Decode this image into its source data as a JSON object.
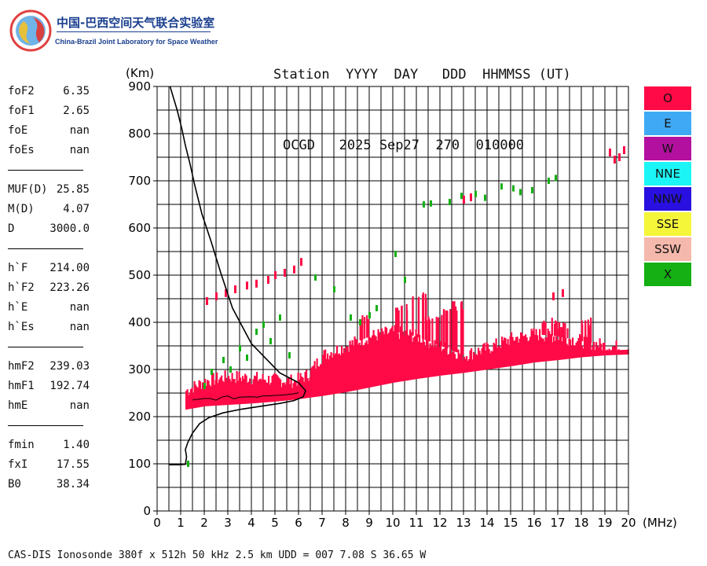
{
  "logo": {
    "cn_text": "中国-巴西空间天气联合实验室",
    "en_text": "China-Brazil Joint Laboratory for Space Weather"
  },
  "header": {
    "line1": "Station  YYYY  DAY   DDD  HHMMSS (UT)",
    "line2": "OCGD   2025 Sep27  270  010000"
  },
  "params": [
    {
      "group": [
        {
          "key": "foF2",
          "value": "6.35"
        },
        {
          "key": "foF1",
          "value": "2.65"
        },
        {
          "key": "foE",
          "value": "nan"
        },
        {
          "key": "foEs",
          "value": "nan"
        }
      ]
    },
    {
      "group": [
        {
          "key": "MUF(D)",
          "value": "25.85"
        },
        {
          "key": "M(D)",
          "value": "4.07"
        },
        {
          "key": "D",
          "value": "3000.0"
        }
      ]
    },
    {
      "group": [
        {
          "key": "h`F",
          "value": "214.00"
        },
        {
          "key": "h`F2",
          "value": "223.26"
        },
        {
          "key": "h`E",
          "value": "nan"
        },
        {
          "key": "h`Es",
          "value": "nan"
        }
      ]
    },
    {
      "group": [
        {
          "key": "hmF2",
          "value": "239.03"
        },
        {
          "key": "hmF1",
          "value": "192.74"
        },
        {
          "key": "hmE",
          "value": "nan"
        }
      ]
    },
    {
      "group": [
        {
          "key": "fmin",
          "value": "1.40"
        },
        {
          "key": "fxI",
          "value": "17.55"
        },
        {
          "key": "B0",
          "value": "38.34"
        }
      ]
    }
  ],
  "legend": [
    {
      "label": "O",
      "color": "#ff0a46"
    },
    {
      "label": "E",
      "color": "#3fa9f5"
    },
    {
      "label": "W",
      "color": "#b3109f"
    },
    {
      "label": "NNE",
      "color": "#1cf5f5"
    },
    {
      "label": "NNW",
      "color": "#2a10e0"
    },
    {
      "label": "SSE",
      "color": "#f5f53a"
    },
    {
      "label": "SSW",
      "color": "#f5b8ac"
    },
    {
      "label": "X",
      "color": "#14b014"
    }
  ],
  "footer": "CAS-DIS Ionosonde 380f x 512h 50 kHz 2.5 km UDD = 007 7.08 S 36.65 W",
  "chart_data": {
    "type": "scatter",
    "xlabel": "(MHz)",
    "ylabel": "(Km)",
    "xlim": [
      0,
      20
    ],
    "ylim": [
      0,
      900
    ],
    "x_ticks": [
      0,
      1,
      2,
      3,
      4,
      5,
      6,
      7,
      8,
      9,
      10,
      11,
      12,
      13,
      14,
      15,
      16,
      17,
      18,
      19,
      20
    ],
    "y_ticks": [
      0,
      100,
      200,
      300,
      400,
      500,
      600,
      700,
      800,
      900
    ],
    "grid": true,
    "legend_position": "right",
    "profile_x": [
      0.5,
      0.6,
      0.9,
      1.2,
      1.25,
      1.2,
      1.3,
      1.5,
      1.8,
      2.2,
      2.8,
      3.6,
      4.4,
      5.2,
      5.8,
      6.2,
      6.3,
      6.0,
      5.2,
      4.0,
      3.2,
      2.7,
      2.3,
      1.9,
      1.6,
      1.4,
      1.2,
      1.05,
      0.85,
      0.55
    ],
    "profile_y": [
      98,
      98,
      98,
      99,
      115,
      130,
      145,
      165,
      185,
      198,
      208,
      216,
      222,
      228,
      234,
      242,
      255,
      272,
      293,
      355,
      430,
      505,
      570,
      630,
      690,
      735,
      775,
      810,
      850,
      900
    ],
    "o_trace_lower_x": [
      1.2,
      2.0,
      3.0,
      4.0,
      5.0,
      5.8,
      6.4,
      7.0,
      8.0,
      9.0,
      10.0,
      11.0,
      12.0,
      13.0,
      14.0,
      15.0,
      16.0,
      17.0,
      18.0,
      19.0,
      20.0
    ],
    "o_trace_lower_y": [
      215,
      222,
      225,
      228,
      232,
      236,
      240,
      244,
      252,
      262,
      272,
      280,
      287,
      293,
      300,
      307,
      315,
      320,
      326,
      330,
      332
    ],
    "o_trace_upper_x": [
      1.2,
      2.0,
      3.0,
      4.0,
      5.0,
      5.8,
      6.4,
      7.0,
      8.0,
      9.0,
      10.0,
      11.0,
      12.0,
      13.0,
      14.0,
      15.0,
      16.0,
      17.0,
      18.0,
      19.0,
      20.0
    ],
    "o_trace_upper_y": [
      255,
      275,
      285,
      282,
      278,
      275,
      290,
      330,
      350,
      370,
      380,
      370,
      350,
      330,
      345,
      365,
      375,
      370,
      360,
      350,
      345
    ],
    "o_spikes": [
      {
        "x": 8.7,
        "y_top": 420
      },
      {
        "x": 10.4,
        "y_top": 440
      },
      {
        "x": 11.1,
        "y_top": 465
      },
      {
        "x": 11.6,
        "y_top": 420
      },
      {
        "x": 12.2,
        "y_top": 430
      },
      {
        "x": 12.8,
        "y_top": 445
      },
      {
        "x": 16.6,
        "y_top": 410
      },
      {
        "x": 17.1,
        "y_top": 405
      },
      {
        "x": 18.1,
        "y_top": 410
      }
    ],
    "o_high_x": [
      2.1,
      2.5,
      2.9,
      3.3,
      3.8,
      4.2,
      4.7,
      5.0,
      5.4,
      5.8,
      6.1,
      13.0,
      13.3,
      16.8,
      17.2,
      19.2,
      19.4,
      19.6,
      19.8
    ],
    "o_high_y": [
      445,
      455,
      462,
      470,
      478,
      482,
      490,
      500,
      505,
      512,
      528,
      660,
      665,
      455,
      462,
      760,
      745,
      750,
      765
    ],
    "x_trace_x": [
      1.3,
      2.0,
      2.3,
      2.8,
      3.1,
      3.5,
      3.8,
      4.2,
      4.5,
      4.8,
      5.2,
      5.6,
      6.7,
      7.5,
      8.2,
      8.6,
      9.0,
      9.3,
      10.1,
      10.5,
      11.3,
      11.6,
      12.4,
      12.9,
      13.5,
      13.9,
      14.6,
      15.1,
      15.4,
      15.9,
      16.6,
      16.9
    ],
    "x_trace_y": [
      100,
      265,
      295,
      320,
      300,
      345,
      325,
      380,
      395,
      360,
      410,
      330,
      495,
      470,
      410,
      400,
      415,
      430,
      545,
      490,
      650,
      652,
      655,
      668,
      672,
      664,
      688,
      684,
      676,
      680,
      700,
      706
    ]
  }
}
